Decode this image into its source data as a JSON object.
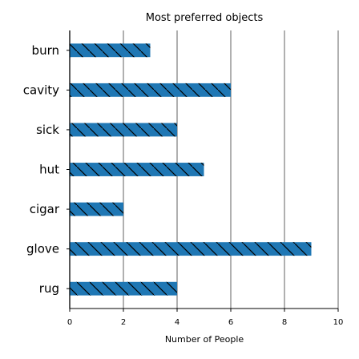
{
  "chart_data": {
    "type": "bar",
    "orientation": "horizontal",
    "title": "Most preferred objects",
    "xlabel": "Number of People",
    "ylabel": "",
    "categories": [
      "burn",
      "cavity",
      "sick",
      "hut",
      "cigar",
      "glove",
      "rug"
    ],
    "values": [
      3,
      6,
      4,
      5,
      2,
      9,
      4
    ],
    "xlim": [
      0,
      10
    ],
    "xticks": [
      0,
      2,
      4,
      6,
      8,
      10
    ],
    "grid": "vertical",
    "bar_color": "#1f77b4",
    "bar_pattern": "diagonal-hatch"
  }
}
